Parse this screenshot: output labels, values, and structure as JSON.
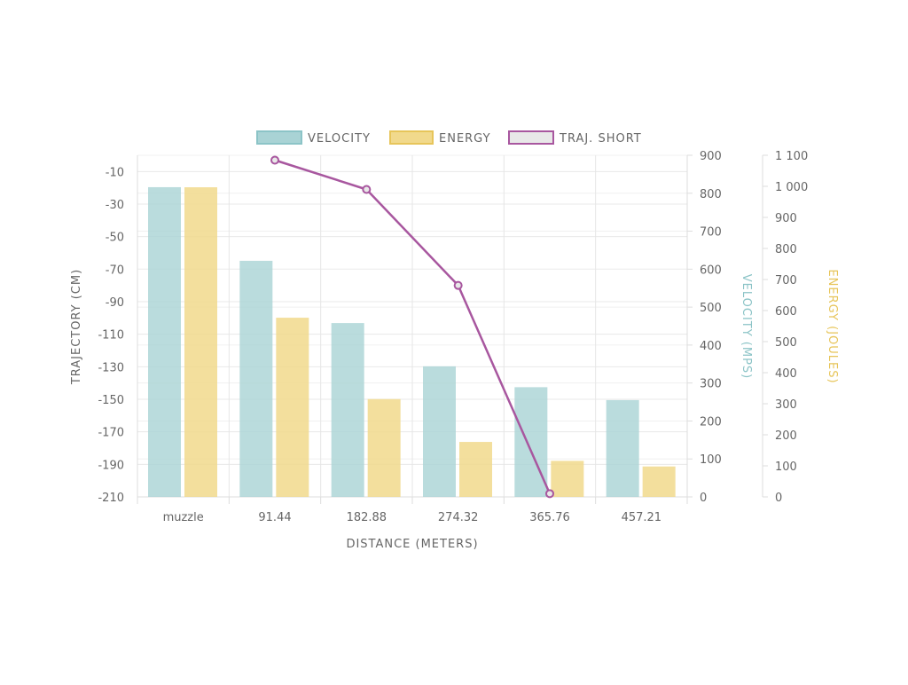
{
  "chart_data": {
    "type": "bar",
    "categories": [
      "muzzle",
      "91.44",
      "182.88",
      "274.32",
      "365.76",
      "457.21"
    ],
    "xlabel": "DISTANCE (METERS)",
    "legend_position": "top",
    "grid": true,
    "axes": {
      "trajectory": {
        "label": "TRAJECTORY (CM)",
        "position": "left",
        "range": [
          -210,
          0
        ],
        "ticks": [
          "-10",
          "-30",
          "-50",
          "-70",
          "-90",
          "-110",
          "-130",
          "-150",
          "-170",
          "-190",
          "-210"
        ],
        "tick_values": [
          -10,
          -30,
          -50,
          -70,
          -90,
          -110,
          -130,
          -150,
          -170,
          -190,
          -210
        ]
      },
      "velocity": {
        "label": "VELOCITY (MPS)",
        "position": "right",
        "range": [
          0,
          900
        ],
        "color": "#8cc4c7",
        "ticks": [
          "0",
          "100",
          "200",
          "300",
          "400",
          "500",
          "600",
          "700",
          "800",
          "900"
        ],
        "tick_values": [
          0,
          100,
          200,
          300,
          400,
          500,
          600,
          700,
          800,
          900
        ]
      },
      "energy": {
        "label": "ENERGY (JOULES)",
        "position": "right",
        "range": [
          0,
          1100
        ],
        "color": "#e7c55a",
        "ticks": [
          "0",
          "100",
          "200",
          "300",
          "400",
          "500",
          "600",
          "700",
          "800",
          "900",
          "1 000",
          "1 100"
        ],
        "tick_values": [
          0,
          100,
          200,
          300,
          400,
          500,
          600,
          700,
          800,
          900,
          1000,
          1100
        ]
      }
    },
    "series": [
      {
        "name": "VELOCITY",
        "type": "bar",
        "axis": "velocity",
        "color": "#a9d3d5",
        "border": "#8cc4c7",
        "values": [
          816,
          622,
          458,
          344,
          289,
          255
        ]
      },
      {
        "name": "ENERGY",
        "type": "bar",
        "axis": "energy",
        "color": "#f1d98c",
        "border": "#e7c55a",
        "values": [
          997,
          577,
          315,
          177,
          116,
          98
        ]
      },
      {
        "name": "TRAJ. SHORT",
        "type": "line",
        "axis": "trajectory",
        "color": "#a8579f",
        "marker_fill": "#e8e8e8",
        "values": [
          null,
          -3,
          -21,
          -80,
          -208,
          null
        ]
      }
    ]
  }
}
